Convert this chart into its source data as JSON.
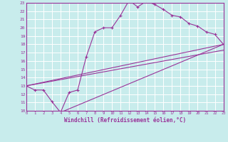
{
  "xlabel": "Windchill (Refroidissement éolien,°C)",
  "xlim": [
    0,
    23
  ],
  "ylim": [
    10,
    23
  ],
  "xticks": [
    0,
    1,
    2,
    3,
    4,
    5,
    6,
    7,
    8,
    9,
    10,
    11,
    12,
    13,
    14,
    15,
    16,
    17,
    18,
    19,
    20,
    21,
    22,
    23
  ],
  "yticks": [
    10,
    11,
    12,
    13,
    14,
    15,
    16,
    17,
    18,
    19,
    20,
    21,
    22,
    23
  ],
  "bg_color": "#c8ecec",
  "grid_color": "#aadddd",
  "grid_white": "#ffffff",
  "line_color": "#993399",
  "line1_x": [
    0,
    1,
    2,
    3,
    4,
    5,
    6,
    7,
    8,
    9,
    10,
    11,
    12,
    13,
    14,
    15,
    16,
    17,
    18,
    19,
    20,
    21,
    22,
    23
  ],
  "line1_y": [
    13,
    12.5,
    12.5,
    11.1,
    9.8,
    12.2,
    12.5,
    16.5,
    19.5,
    20.0,
    20.0,
    21.5,
    23.3,
    22.5,
    23.2,
    22.8,
    22.2,
    21.5,
    21.3,
    20.5,
    20.2,
    19.5,
    19.2,
    18.0
  ],
  "line2_x": [
    0,
    23
  ],
  "line2_y": [
    13,
    18.0
  ],
  "line3_x": [
    0,
    23
  ],
  "line3_y": [
    13,
    17.3
  ],
  "line4_x": [
    4,
    23
  ],
  "line4_y": [
    9.8,
    18.0
  ]
}
